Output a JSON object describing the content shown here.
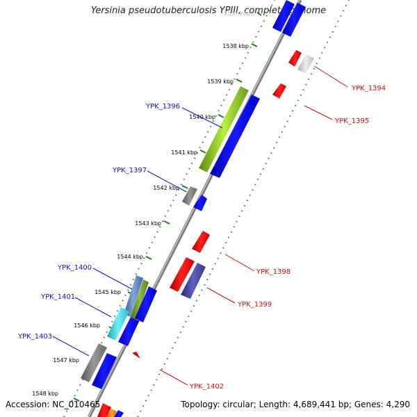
{
  "title": "Yersinia pseudotuberculosis YPIII, complete genome",
  "footer": {
    "accession": "Accession: NC_010465",
    "topology": "Topology: circular; Length: 4,689,441 bp; Genes: 4,290"
  },
  "colors": {
    "backbone": "#8a8a8a",
    "kbp_tick": "#1e7a1e",
    "dotted_ring": "#2a8a2a",
    "label_blue": "#1010cc",
    "label_red": "#cc1010"
  },
  "kbp_ticks": [
    "1537 kbp",
    "1538 kbp",
    "1539 kbp",
    "1540 kbp",
    "1541 kbp",
    "1542 kbp",
    "1543 kbp",
    "1544 kbp",
    "1545 kbp",
    "1546 kbp",
    "1547 kbp",
    "1548 kbp"
  ],
  "gene_labels": [
    {
      "name": "YPK_1394",
      "strand": "minus"
    },
    {
      "name": "YPK_1395",
      "strand": "minus"
    },
    {
      "name": "YPK_1396",
      "strand": "plus"
    },
    {
      "name": "YPK_1397",
      "strand": "plus"
    },
    {
      "name": "YPK_1398",
      "strand": "minus"
    },
    {
      "name": "YPK_1399",
      "strand": "minus"
    },
    {
      "name": "YPK_1400",
      "strand": "plus"
    },
    {
      "name": "YPK_1401",
      "strand": "plus"
    },
    {
      "name": "YPK_1402",
      "strand": "minus"
    },
    {
      "name": "YPK_1403",
      "strand": "plus"
    }
  ]
}
